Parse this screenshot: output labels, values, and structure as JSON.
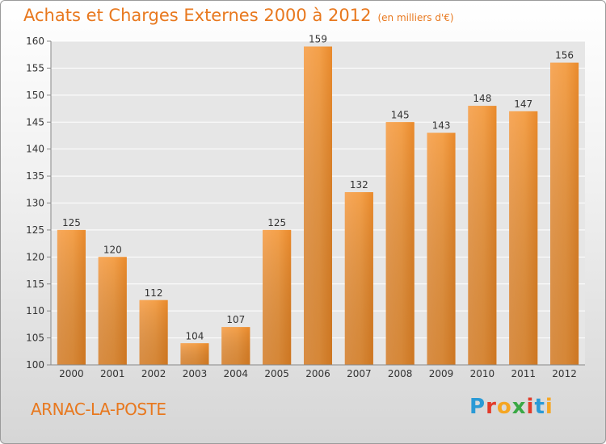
{
  "chart_data": {
    "type": "bar",
    "title": "Achats et Charges Externes 2000 à 2012",
    "subtitle": "(en milliers d'€)",
    "categories": [
      "2000",
      "2001",
      "2002",
      "2003",
      "2004",
      "2005",
      "2006",
      "2007",
      "2008",
      "2009",
      "2010",
      "2011",
      "2012"
    ],
    "values": [
      125,
      120,
      112,
      104,
      107,
      125,
      159,
      132,
      145,
      143,
      148,
      147,
      156
    ],
    "ylim": [
      100,
      160
    ],
    "yticks": [
      100,
      105,
      110,
      115,
      120,
      125,
      130,
      135,
      140,
      145,
      150,
      155,
      160
    ],
    "grid": true,
    "bar_color": "#f0933a"
  },
  "location": "ARNAC-LA-POSTE",
  "logo": {
    "letters": [
      "P",
      "r",
      "o",
      "x",
      "i",
      "t",
      "i"
    ],
    "colors": [
      "#2a9ad6",
      "#e23b2a",
      "#f5a623",
      "#3aa845",
      "#e23b2a",
      "#2a9ad6",
      "#f5a623"
    ]
  }
}
